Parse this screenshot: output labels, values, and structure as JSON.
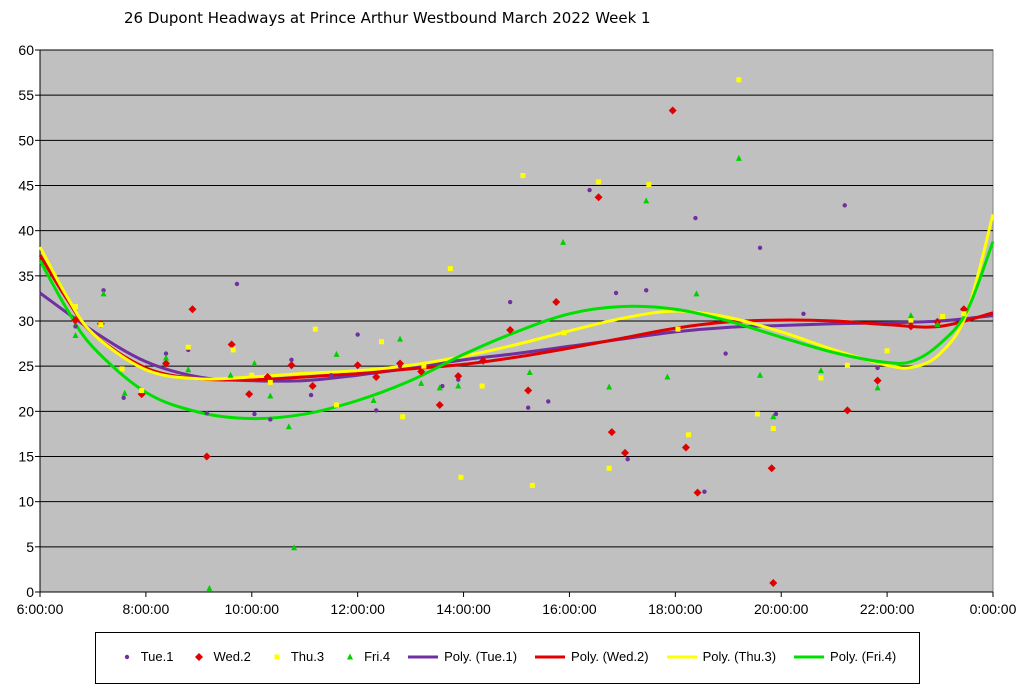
{
  "chart_data": {
    "type": "scatter",
    "title": "26 Dupont Headways at Prince Arthur Westbound March 2022  Week 1",
    "xlabel": "",
    "ylabel": "",
    "x_unit": "hours",
    "xlim": [
      6,
      24
    ],
    "ylim": [
      0,
      60
    ],
    "y_ticks": [
      "0",
      "5",
      "10",
      "15",
      "20",
      "25",
      "30",
      "35",
      "40",
      "45",
      "50",
      "55",
      "60"
    ],
    "x_ticks": [
      "6:00:00",
      "8:00:00",
      "10:00:00",
      "12:00:00",
      "14:00:00",
      "16:00:00",
      "18:00:00",
      "20:00:00",
      "22:00:00",
      "0:00:00"
    ],
    "grid": true,
    "legend_position": "bottom",
    "plot_background": "#c0c0c0",
    "series": [
      {
        "name": "Tue.1",
        "marker": "circle",
        "color": "#7030a0",
        "points": [
          [
            6.67,
            29.4
          ],
          [
            7.2,
            33.4
          ],
          [
            7.58,
            21.5
          ],
          [
            7.92,
            22.1
          ],
          [
            8.38,
            26.4
          ],
          [
            8.8,
            26.8
          ],
          [
            9.15,
            19.8
          ],
          [
            9.72,
            34.1
          ],
          [
            10.05,
            19.7
          ],
          [
            10.35,
            19.1
          ],
          [
            10.75,
            25.7
          ],
          [
            11.12,
            21.8
          ],
          [
            11.5,
            24
          ],
          [
            12,
            28.5
          ],
          [
            12.35,
            20.1
          ],
          [
            12.8,
            25
          ],
          [
            13.2,
            24.5
          ],
          [
            13.6,
            22.8
          ],
          [
            13.9,
            23.5
          ],
          [
            14.37,
            25.7
          ],
          [
            14.88,
            32.1
          ],
          [
            15.22,
            20.4
          ],
          [
            15.6,
            21.1
          ],
          [
            16.38,
            44.5
          ],
          [
            16.88,
            33.1
          ],
          [
            17.1,
            14.7
          ],
          [
            17.45,
            33.4
          ],
          [
            18.38,
            41.4
          ],
          [
            18.55,
            11.1
          ],
          [
            18.95,
            26.4
          ],
          [
            19.6,
            38.1
          ],
          [
            19.9,
            19.7
          ],
          [
            20.42,
            30.8
          ],
          [
            21.2,
            42.8
          ],
          [
            21.82,
            24.8
          ],
          [
            22.45,
            29.5
          ],
          [
            22.95,
            29.6
          ]
        ]
      },
      {
        "name": "Wed.2",
        "marker": "diamond",
        "color": "#e00000",
        "points": [
          [
            6.67,
            30.1
          ],
          [
            7.15,
            29.7
          ],
          [
            7.92,
            21.9
          ],
          [
            8.38,
            25.3
          ],
          [
            8.88,
            31.3
          ],
          [
            9.15,
            15
          ],
          [
            9.62,
            27.4
          ],
          [
            9.95,
            21.9
          ],
          [
            10.3,
            23.8
          ],
          [
            10.75,
            25.1
          ],
          [
            11.15,
            22.8
          ],
          [
            12,
            25.1
          ],
          [
            12.35,
            23.8
          ],
          [
            12.8,
            25.3
          ],
          [
            13.2,
            24.4
          ],
          [
            13.55,
            20.7
          ],
          [
            13.9,
            23.9
          ],
          [
            14.37,
            25.6
          ],
          [
            14.88,
            29
          ],
          [
            15.22,
            22.3
          ],
          [
            15.75,
            32.1
          ],
          [
            16.55,
            43.7
          ],
          [
            16.8,
            17.7
          ],
          [
            17.05,
            15.4
          ],
          [
            17.95,
            53.3
          ],
          [
            18.2,
            16
          ],
          [
            18.42,
            11
          ],
          [
            19.82,
            13.7
          ],
          [
            19.85,
            1
          ],
          [
            21.25,
            20.1
          ],
          [
            21.82,
            23.4
          ],
          [
            22.45,
            29.4
          ],
          [
            22.95,
            29.9
          ],
          [
            23.45,
            31.3
          ]
        ]
      },
      {
        "name": "Thu.3",
        "marker": "square",
        "color": "#ffff00",
        "points": [
          [
            6.67,
            31.6
          ],
          [
            7.15,
            29.6
          ],
          [
            7.55,
            24.7
          ],
          [
            7.92,
            22.3
          ],
          [
            8.8,
            27.1
          ],
          [
            9.65,
            26.8
          ],
          [
            10,
            24
          ],
          [
            10.35,
            23.2
          ],
          [
            11.2,
            29.1
          ],
          [
            11.6,
            20.7
          ],
          [
            12.45,
            27.7
          ],
          [
            12.85,
            19.4
          ],
          [
            13.25,
            25
          ],
          [
            13.75,
            35.8
          ],
          [
            13.95,
            12.7
          ],
          [
            14.35,
            22.8
          ],
          [
            15.12,
            46.1
          ],
          [
            15.3,
            11.8
          ],
          [
            15.9,
            28.7
          ],
          [
            16.55,
            45.4
          ],
          [
            16.75,
            13.7
          ],
          [
            17.5,
            45.1
          ],
          [
            18.25,
            17.4
          ],
          [
            18.05,
            29.1
          ],
          [
            19.2,
            56.7
          ],
          [
            19.55,
            19.7
          ],
          [
            19.85,
            18.1
          ],
          [
            20.75,
            23.7
          ],
          [
            21.25,
            25.1
          ],
          [
            22,
            26.7
          ],
          [
            22.45,
            30.1
          ],
          [
            23.05,
            30.5
          ],
          [
            23.45,
            30.8
          ]
        ]
      },
      {
        "name": "Fri.4",
        "marker": "triangle",
        "color": "#00d000",
        "points": [
          [
            6.67,
            28.4
          ],
          [
            7.2,
            33
          ],
          [
            7.6,
            22
          ],
          [
            8.38,
            25.9
          ],
          [
            8.8,
            24.6
          ],
          [
            9.2,
            0.4
          ],
          [
            9.6,
            24
          ],
          [
            10.05,
            25.3
          ],
          [
            10.35,
            21.7
          ],
          [
            10.7,
            18.3
          ],
          [
            10.8,
            4.9
          ],
          [
            11.6,
            26.3
          ],
          [
            12.3,
            21.2
          ],
          [
            12.8,
            28
          ],
          [
            13.2,
            23.1
          ],
          [
            13.55,
            22.6
          ],
          [
            13.9,
            22.8
          ],
          [
            15.25,
            24.3
          ],
          [
            15.88,
            38.7
          ],
          [
            16.75,
            22.7
          ],
          [
            17.45,
            43.3
          ],
          [
            17.85,
            23.8
          ],
          [
            18.4,
            33
          ],
          [
            19.2,
            48
          ],
          [
            19.6,
            24
          ],
          [
            19.85,
            19.4
          ],
          [
            20.75,
            24.5
          ],
          [
            21.82,
            22.6
          ],
          [
            22.45,
            30.6
          ],
          [
            22.95,
            29.6
          ]
        ]
      }
    ],
    "trendlines": [
      {
        "name": "Poly. (Tue.1)",
        "color": "#7030a0",
        "points": [
          [
            6,
            33.1
          ],
          [
            7,
            28.9
          ],
          [
            8,
            25.5
          ],
          [
            9,
            23.8
          ],
          [
            10,
            23.4
          ],
          [
            11,
            23.4
          ],
          [
            12,
            24
          ],
          [
            13,
            24.8
          ],
          [
            14,
            25.7
          ],
          [
            15,
            26.4
          ],
          [
            16,
            27.2
          ],
          [
            17,
            28
          ],
          [
            18,
            28.8
          ],
          [
            19,
            29.3
          ],
          [
            20,
            29.5
          ],
          [
            21,
            29.7
          ],
          [
            22,
            29.8
          ],
          [
            23,
            30
          ],
          [
            24,
            30.6
          ]
        ]
      },
      {
        "name": "Poly. (Wed.2)",
        "color": "#e00000",
        "points": [
          [
            6,
            37.3
          ],
          [
            6.5,
            32.5
          ],
          [
            7,
            28.6
          ],
          [
            8,
            24.8
          ],
          [
            9,
            23.6
          ],
          [
            10,
            23.5
          ],
          [
            11,
            23.8
          ],
          [
            12,
            24.2
          ],
          [
            13,
            24.7
          ],
          [
            14,
            25.2
          ],
          [
            15,
            26
          ],
          [
            16,
            27
          ],
          [
            17,
            28.1
          ],
          [
            18,
            29.2
          ],
          [
            19,
            29.9
          ],
          [
            20,
            30.1
          ],
          [
            21,
            30
          ],
          [
            22,
            29.6
          ],
          [
            23,
            29.4
          ],
          [
            24,
            30.9
          ]
        ]
      },
      {
        "name": "Poly. (Thu.3)",
        "color": "#ffff00",
        "points": [
          [
            6,
            38.2
          ],
          [
            6.5,
            32.8
          ],
          [
            7,
            28.6
          ],
          [
            8,
            24.6
          ],
          [
            9,
            23.6
          ],
          [
            10,
            23.8
          ],
          [
            11,
            24.2
          ],
          [
            12,
            24.5
          ],
          [
            13,
            25.1
          ],
          [
            14,
            26.1
          ],
          [
            15,
            27.4
          ],
          [
            16,
            28.9
          ],
          [
            17,
            30.3
          ],
          [
            18,
            31.1
          ],
          [
            19,
            30.4
          ],
          [
            20,
            28.8
          ],
          [
            21,
            26.8
          ],
          [
            22,
            25.1
          ],
          [
            22.5,
            24.9
          ],
          [
            23,
            26.4
          ],
          [
            23.5,
            30.8
          ],
          [
            24,
            41.8
          ]
        ]
      },
      {
        "name": "Poly. (Fri.4)",
        "color": "#00e000",
        "points": [
          [
            6,
            36.7
          ],
          [
            6.5,
            31.4
          ],
          [
            7,
            27.1
          ],
          [
            8,
            22.1
          ],
          [
            9,
            19.9
          ],
          [
            10,
            19.2
          ],
          [
            11,
            19.7
          ],
          [
            12,
            21.2
          ],
          [
            13,
            23.4
          ],
          [
            14,
            26.3
          ],
          [
            15,
            28.8
          ],
          [
            16,
            30.8
          ],
          [
            17,
            31.6
          ],
          [
            18,
            31.3
          ],
          [
            19,
            30
          ],
          [
            20,
            28.2
          ],
          [
            21,
            26.5
          ],
          [
            22,
            25.4
          ],
          [
            22.5,
            25.6
          ],
          [
            23,
            27.5
          ],
          [
            23.5,
            31
          ],
          [
            24,
            38.8
          ]
        ]
      }
    ]
  }
}
